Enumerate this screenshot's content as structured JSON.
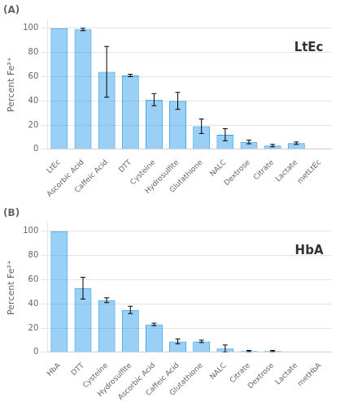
{
  "chart_data": [
    {
      "type": "bar",
      "title": "(A)",
      "annotations": [
        "LtEc"
      ],
      "categories": [
        "LtEc",
        "Ascorbic Acid",
        "Caffeic Acid",
        "DTT",
        "Cysteine",
        "Hydrosulfite",
        "Glutathione",
        "NALC",
        "Dextrose",
        "Citrate",
        "Lactate",
        "metLtEc"
      ],
      "values": [
        100,
        99,
        64,
        61,
        41,
        40,
        19,
        12,
        6,
        3,
        5,
        0
      ],
      "errors": [
        0,
        1,
        21,
        1,
        5,
        7,
        6,
        5,
        1.5,
        1,
        1,
        0
      ],
      "ylabel": "Percent Fe²⁺",
      "ylim": [
        0,
        107
      ],
      "yticks": [
        0,
        20,
        40,
        60,
        80,
        100
      ],
      "grid": true
    },
    {
      "type": "bar",
      "title": "(B)",
      "annotations": [
        "HbA"
      ],
      "categories": [
        "HbA",
        "DTT",
        "Cysteine",
        "Hydrosulfite",
        "Ascorbic Acid",
        "Caffeic Acid",
        "Glutathione",
        "NALC",
        "Citrate",
        "Dextrose",
        "Lactate",
        "metHbA"
      ],
      "values": [
        100,
        53,
        43,
        35,
        23,
        9,
        9,
        3,
        1,
        1,
        0,
        0
      ],
      "errors": [
        0,
        9,
        2,
        3,
        1,
        2,
        1,
        3,
        0.5,
        0.5,
        0,
        0
      ],
      "ylabel": "Percent Fe²⁺",
      "ylim": [
        0,
        107
      ],
      "yticks": [
        0,
        20,
        40,
        60,
        80,
        100
      ],
      "grid": true
    }
  ]
}
